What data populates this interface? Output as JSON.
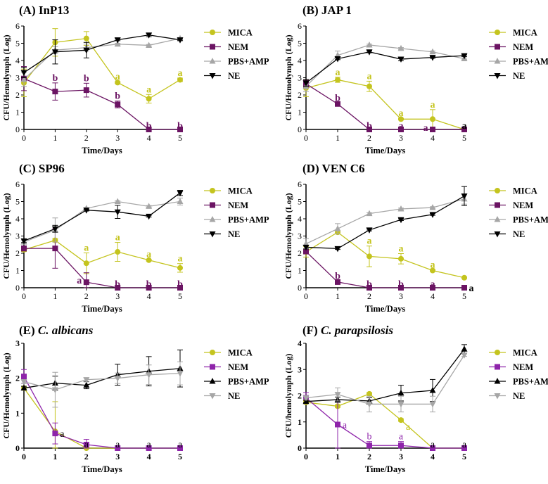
{
  "legend_order": [
    "MICA",
    "NEM",
    "PBS+AMP",
    "NE"
  ],
  "chart_data": [
    {
      "type": "line",
      "title_label": "(A)",
      "title_name": "InP13",
      "title_italic": false,
      "xlabel": "Time/Days",
      "ylabel": "CFU/Hemolymph (Log)",
      "x": [
        0,
        1,
        2,
        3,
        4,
        5
      ],
      "ylim": [
        0,
        6
      ],
      "yticks": [
        0,
        1,
        2,
        3,
        4,
        5,
        6
      ],
      "grid": false,
      "legend": "right",
      "series": [
        {
          "name": "MICA",
          "color": "#c4c41e",
          "marker": "circle",
          "values": [
            2.7,
            5.05,
            5.28,
            2.72,
            1.78,
            2.88
          ],
          "errors": [
            0.8,
            0.8,
            0.4,
            0.05,
            0.25,
            0.1
          ]
        },
        {
          "name": "NEM",
          "color": "#6b1463",
          "marker": "square",
          "values": [
            2.95,
            2.2,
            2.28,
            1.45,
            0,
            0
          ],
          "errors": [
            0.7,
            0.5,
            0.4,
            0.2,
            0,
            0
          ]
        },
        {
          "name": "PBS+AMP",
          "color": "#a6a6a6",
          "marker": "triangle-up",
          "values": [
            2.9,
            4.6,
            4.75,
            4.95,
            4.88,
            5.28
          ],
          "errors": [
            0.4,
            0.2,
            0.2,
            0.05,
            0.05,
            0.05
          ]
        },
        {
          "name": "NE",
          "color": "#000000",
          "marker": "triangle-down",
          "values": [
            3.3,
            4.5,
            4.6,
            5.2,
            5.48,
            5.2
          ],
          "errors": [
            0.3,
            0.7,
            0.45,
            0.05,
            0.1,
            0.05
          ]
        }
      ],
      "annotations": [
        {
          "day": 3,
          "text": "a",
          "series": "MICA",
          "pos": "above"
        },
        {
          "day": 4,
          "text": "a",
          "series": "MICA",
          "pos": "above"
        },
        {
          "day": 5,
          "text": "a",
          "series": "MICA",
          "pos": "above"
        },
        {
          "day": 1,
          "text": "b",
          "series": "NEM",
          "pos": "above"
        },
        {
          "day": 2,
          "text": "b",
          "series": "NEM",
          "pos": "above"
        },
        {
          "day": 3,
          "text": "b",
          "series": "NEM",
          "pos": "above"
        },
        {
          "day": 4,
          "text": "b",
          "series": "NEM",
          "pos": "above"
        },
        {
          "day": 5,
          "text": "b",
          "series": "NEM",
          "pos": "above"
        }
      ]
    },
    {
      "type": "line",
      "title_label": "(B)",
      "title_name": "JAP 1",
      "title_italic": false,
      "xlabel": "Time/Days",
      "ylabel": "CFU/Hemolymph (Log)",
      "x": [
        0,
        1,
        2,
        3,
        4,
        5
      ],
      "ylim": [
        0,
        6
      ],
      "yticks": [
        0,
        1,
        2,
        3,
        4,
        5,
        6
      ],
      "grid": false,
      "legend": "right",
      "series": [
        {
          "name": "MICA",
          "color": "#c4c41e",
          "marker": "circle",
          "values": [
            2.4,
            2.88,
            2.5,
            0.6,
            0.6,
            0
          ],
          "errors": [
            0.5,
            0.15,
            0.3,
            0.05,
            0.55,
            0
          ]
        },
        {
          "name": "NEM",
          "color": "#6b1463",
          "marker": "square",
          "values": [
            2.65,
            1.48,
            0,
            0,
            0,
            0
          ],
          "errors": [
            0.2,
            0.05,
            0,
            0,
            0,
            0
          ]
        },
        {
          "name": "PBS+AMP",
          "color": "#a6a6a6",
          "marker": "triangle-up",
          "values": [
            2.5,
            4.3,
            4.9,
            4.7,
            4.5,
            4.1
          ],
          "errors": [
            0.3,
            0.25,
            0.05,
            0.05,
            0.05,
            0.05
          ]
        },
        {
          "name": "NE",
          "color": "#000000",
          "marker": "triangle-down",
          "values": [
            2.7,
            4.1,
            4.5,
            4.08,
            4.18,
            4.28
          ],
          "errors": [
            0.2,
            0.05,
            0.05,
            0.1,
            0.05,
            0.05
          ]
        }
      ],
      "annotations": [
        {
          "day": 1,
          "text": "a",
          "series": "MICA",
          "pos": "above"
        },
        {
          "day": 2,
          "text": "a",
          "series": "MICA",
          "pos": "above"
        },
        {
          "day": 3,
          "text": "a",
          "series": "MICA",
          "pos": "above"
        },
        {
          "day": 4,
          "text": "a",
          "series": "MICA",
          "pos": "above"
        },
        {
          "day": 1,
          "text": "b",
          "series": "NEM",
          "pos": "above"
        },
        {
          "day": 2,
          "text": "b",
          "series": "NEM",
          "pos": "above"
        },
        {
          "day": 3,
          "text": "a",
          "series": "NEM",
          "pos": "above"
        },
        {
          "day": 4,
          "text": "a",
          "series": "NEM",
          "pos": "left"
        },
        {
          "day": 5,
          "text": "a",
          "series": null,
          "pos": "above"
        }
      ]
    },
    {
      "type": "line",
      "title_label": "(C)",
      "title_name": "SP96",
      "title_italic": false,
      "xlabel": "Time/Days",
      "ylabel": "CFU/Hemolymph (Log)",
      "x": [
        0,
        1,
        2,
        3,
        4,
        5
      ],
      "ylim": [
        0,
        6
      ],
      "yticks": [
        0,
        1,
        2,
        3,
        4,
        5,
        6
      ],
      "grid": false,
      "legend": "right",
      "series": [
        {
          "name": "MICA",
          "color": "#c4c41e",
          "marker": "circle",
          "values": [
            2.2,
            2.75,
            1.42,
            2.08,
            1.6,
            1.15
          ],
          "errors": [
            0.1,
            0.1,
            0.6,
            0.55,
            0.05,
            0.25
          ]
        },
        {
          "name": "NEM",
          "color": "#6b1463",
          "marker": "square",
          "values": [
            2.28,
            2.28,
            0.32,
            0,
            0,
            0
          ],
          "errors": [
            0.15,
            1.15,
            0.55,
            0,
            0,
            0
          ]
        },
        {
          "name": "PBS+AMP",
          "color": "#a6a6a6",
          "marker": "triangle-up",
          "values": [
            2.65,
            3.35,
            4.6,
            5.0,
            4.72,
            5.0
          ],
          "errors": [
            0.1,
            0.7,
            0.05,
            0.05,
            0.05,
            0.2
          ]
        },
        {
          "name": "NE",
          "color": "#000000",
          "marker": "triangle-down",
          "values": [
            2.72,
            3.42,
            4.5,
            4.4,
            4.15,
            5.5
          ],
          "errors": [
            0.1,
            0.2,
            0.05,
            0.38,
            0.05,
            0.15
          ]
        }
      ],
      "annotations": [
        {
          "day": 2,
          "text": "a",
          "series": "MICA",
          "pos": "above"
        },
        {
          "day": 3,
          "text": "a",
          "series": "MICA",
          "pos": "above"
        },
        {
          "day": 4,
          "text": "a",
          "series": "MICA",
          "pos": "above"
        },
        {
          "day": 5,
          "text": "a",
          "series": "MICA",
          "pos": "above"
        },
        {
          "day": 2,
          "text": "a",
          "series": "NEM",
          "pos": "left"
        },
        {
          "day": 3,
          "text": "b",
          "series": "NEM",
          "pos": "above"
        },
        {
          "day": 4,
          "text": "b",
          "series": "NEM",
          "pos": "above"
        },
        {
          "day": 5,
          "text": "b",
          "series": "NEM",
          "pos": "above"
        }
      ]
    },
    {
      "type": "line",
      "title_label": "(D)",
      "title_name": "VEN C6",
      "title_italic": false,
      "xlabel": "Time/Days",
      "ylabel": "CFU/Hemolymph (Log)",
      "x": [
        0,
        1,
        2,
        3,
        4,
        5
      ],
      "ylim": [
        0,
        6
      ],
      "yticks": [
        0,
        1,
        2,
        3,
        4,
        5,
        6
      ],
      "grid": false,
      "legend": "right",
      "series": [
        {
          "name": "MICA",
          "color": "#c4c41e",
          "marker": "circle",
          "values": [
            2.08,
            3.22,
            1.82,
            1.68,
            1.0,
            0.58
          ],
          "errors": [
            0.3,
            0.1,
            0.6,
            0.3,
            0.05,
            0.05
          ]
        },
        {
          "name": "NEM",
          "color": "#6b1463",
          "marker": "square",
          "values": [
            2.1,
            0.33,
            0,
            0,
            0,
            0
          ],
          "errors": [
            0.1,
            0.05,
            0,
            0,
            0,
            0
          ]
        },
        {
          "name": "PBS+AMP",
          "color": "#a6a6a6",
          "marker": "triangle-up",
          "values": [
            2.55,
            3.42,
            4.3,
            4.57,
            4.65,
            5.15
          ],
          "errors": [
            0.3,
            0.3,
            0.05,
            0.05,
            0.05,
            0.3
          ]
        },
        {
          "name": "NE",
          "color": "#000000",
          "marker": "triangle-down",
          "values": [
            2.35,
            2.27,
            3.35,
            3.95,
            4.25,
            5.32
          ],
          "errors": [
            0.1,
            0.05,
            0.05,
            0.05,
            0.05,
            0.55
          ]
        }
      ],
      "annotations": [
        {
          "day": 2,
          "text": "a",
          "series": "MICA",
          "pos": "above"
        },
        {
          "day": 3,
          "text": "a",
          "series": "MICA",
          "pos": "above"
        },
        {
          "day": 4,
          "text": "a",
          "series": "MICA",
          "pos": "above"
        },
        {
          "day": 1,
          "text": "b",
          "series": "NEM",
          "pos": "above"
        },
        {
          "day": 2,
          "text": "b",
          "series": "NEM",
          "pos": "above"
        },
        {
          "day": 3,
          "text": "b",
          "series": "NEM",
          "pos": "above"
        },
        {
          "day": 4,
          "text": "a",
          "series": "NEM",
          "pos": "above"
        },
        {
          "day": 5,
          "text": "a",
          "series": null,
          "pos": "right"
        }
      ]
    },
    {
      "type": "line",
      "title_label": "(E)",
      "title_name": "C. albicans",
      "title_italic": true,
      "xlabel": "Time/Days",
      "ylabel": "CFU/Hemolymph (Log)",
      "x": [
        0,
        1,
        2,
        3,
        4,
        5
      ],
      "ylim": [
        0,
        3
      ],
      "yticks": [
        0,
        1,
        2,
        3
      ],
      "grid": false,
      "legend": "right",
      "series": [
        {
          "name": "MICA",
          "color": "#c4c41e",
          "marker": "circle",
          "values": [
            1.72,
            0.48,
            0,
            0,
            0,
            0
          ],
          "errors": [
            0.05,
            0.85,
            0,
            0,
            0,
            0
          ]
        },
        {
          "name": "NEM",
          "color": "#8e24aa",
          "marker": "square",
          "values": [
            2.05,
            0.42,
            0.1,
            0,
            0,
            0
          ],
          "errors": [
            0.2,
            0.3,
            0.15,
            0,
            0,
            0
          ]
        },
        {
          "name": "PBS+AMP",
          "color": "#000000",
          "marker": "triangle-up",
          "values": [
            1.72,
            1.86,
            1.8,
            2.1,
            2.2,
            2.28
          ],
          "errors": [
            0.05,
            0.2,
            0.1,
            0.3,
            0.42,
            0.53
          ]
        },
        {
          "name": "NE",
          "color": "#a6a6a6",
          "marker": "triangle-down",
          "values": [
            1.9,
            1.67,
            1.96,
            2.0,
            2.1,
            2.14
          ],
          "errors": [
            0.05,
            0.5,
            0.05,
            0.15,
            0.28,
            0.33
          ]
        }
      ],
      "annotations": [
        {
          "day": 1,
          "text": "a",
          "series": null,
          "pos": "right"
        },
        {
          "day": 2,
          "text": "a",
          "series": null,
          "pos": "above"
        },
        {
          "day": 3,
          "text": "a",
          "series": null,
          "pos": "above"
        },
        {
          "day": 4,
          "text": "a",
          "series": null,
          "pos": "above"
        },
        {
          "day": 5,
          "text": "a",
          "series": null,
          "pos": "above"
        }
      ]
    },
    {
      "type": "line",
      "title_label": "(F)",
      "title_name": "C. parapsilosis",
      "title_italic": true,
      "xlabel": "Time/Days",
      "ylabel": "CFU/hemolymph (Log)",
      "x": [
        0,
        1,
        2,
        3,
        4,
        5
      ],
      "ylim": [
        0,
        4
      ],
      "yticks": [
        0,
        1,
        2,
        3,
        4
      ],
      "grid": false,
      "legend": "right",
      "series": [
        {
          "name": "MICA",
          "color": "#c4c41e",
          "marker": "circle",
          "values": [
            1.75,
            1.6,
            2.07,
            1.07,
            0,
            0
          ],
          "errors": [
            0.05,
            0.05,
            0.05,
            0.05,
            0,
            0
          ]
        },
        {
          "name": "NEM",
          "color": "#8e24aa",
          "marker": "square",
          "values": [
            1.92,
            0.9,
            0.1,
            0.1,
            0,
            0
          ],
          "errors": [
            0.2,
            0.9,
            0.15,
            0.15,
            0,
            0
          ]
        },
        {
          "name": "PBS+AMP",
          "color": "#000000",
          "marker": "triangle-up",
          "values": [
            1.78,
            1.85,
            1.8,
            2.1,
            2.2,
            3.78
          ],
          "errors": [
            0.05,
            0.1,
            0.12,
            0.3,
            0.42,
            0.17
          ]
        },
        {
          "name": "NE",
          "color": "#a6a6a6",
          "marker": "triangle-down",
          "values": [
            1.92,
            2.05,
            1.68,
            1.68,
            1.68,
            3.55
          ],
          "errors": [
            0.05,
            0.25,
            0.3,
            0.3,
            0.3,
            0.05
          ]
        }
      ],
      "annotations": [
        {
          "day": 1,
          "text": "a",
          "series": "NEM",
          "pos": "right"
        },
        {
          "day": 2,
          "text": "b",
          "series": "NEM",
          "pos": "above"
        },
        {
          "day": 3,
          "text": "a",
          "series": "NEM",
          "pos": "above"
        },
        {
          "day": 3,
          "text": "a",
          "series": "MICA",
          "pos": "below"
        },
        {
          "day": 4,
          "text": "a",
          "series": null,
          "pos": "above"
        },
        {
          "day": 5,
          "text": "a",
          "series": null,
          "pos": "above"
        }
      ]
    }
  ]
}
